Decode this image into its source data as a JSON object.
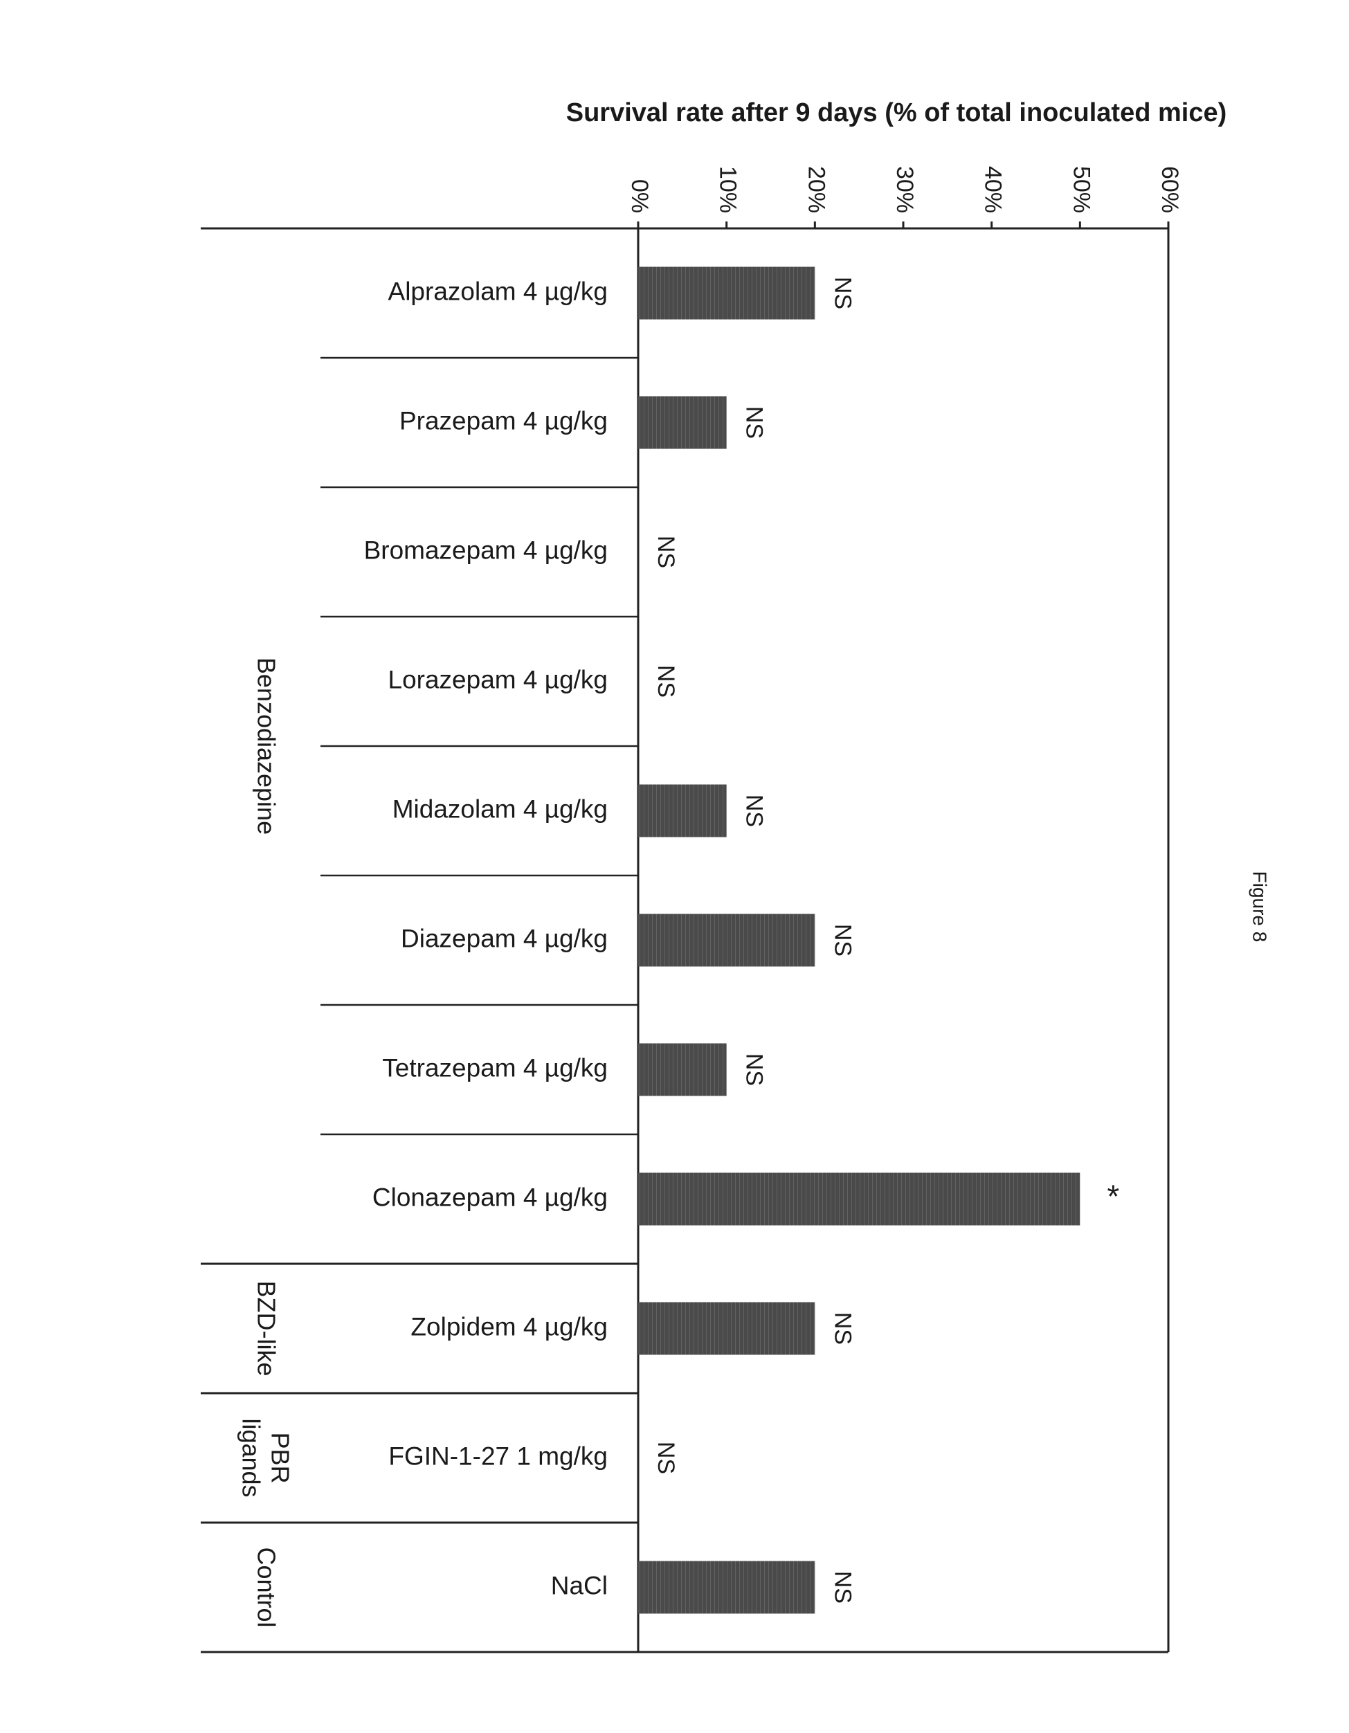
{
  "figure_label": "Figure 8",
  "colors": {
    "bar": "#4a4a4a",
    "axis": "#222222",
    "text": "#1a1a1a",
    "background": "#ffffff"
  },
  "chart_data": {
    "type": "bar",
    "orientation": "horizontal (page rotated 90°)",
    "title": "",
    "xlabel": "Survival rate after 9 days (% of total inoculated mice)",
    "xlim": [
      0,
      60
    ],
    "ticks": [
      "0%",
      "10%",
      "20%",
      "30%",
      "40%",
      "50%",
      "60%"
    ],
    "grid": false,
    "categories": [
      "Alprazolam 4 µg/kg",
      "Prazepam 4 µg/kg",
      "Bromazepam 4 µg/kg",
      "Lorazepam 4 µg/kg",
      "Midazolam 4 µg/kg",
      "Diazepam 4 µg/kg",
      "Tetrazepam 4 µg/kg",
      "Clonazepam 4 µg/kg",
      "Zolpidem 4 µg/kg",
      "FGIN-1-27 1 mg/kg",
      "NaCl"
    ],
    "values": [
      20,
      10,
      0,
      0,
      10,
      20,
      10,
      50,
      20,
      0,
      20
    ],
    "annotations": [
      "NS",
      "NS",
      "NS",
      "NS",
      "NS",
      "NS",
      "NS",
      "*",
      "NS",
      "NS",
      "NS"
    ],
    "groups": [
      {
        "label": "Benzodiazepine",
        "count": 8
      },
      {
        "label": "BZD-like",
        "count": 1
      },
      {
        "label": "PBR ligands",
        "count": 1
      },
      {
        "label": "Control",
        "count": 1
      }
    ]
  }
}
